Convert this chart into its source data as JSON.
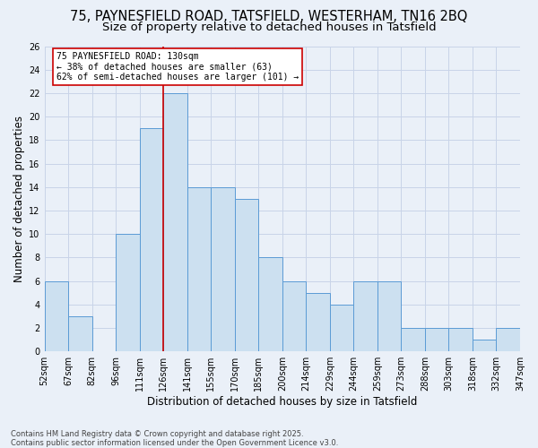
{
  "title1": "75, PAYNESFIELD ROAD, TATSFIELD, WESTERHAM, TN16 2BQ",
  "title2": "Size of property relative to detached houses in Tatsfield",
  "xlabel": "Distribution of detached houses by size in Tatsfield",
  "ylabel": "Number of detached properties",
  "bin_edges": [
    "52sqm",
    "67sqm",
    "82sqm",
    "96sqm",
    "111sqm",
    "126sqm",
    "141sqm",
    "155sqm",
    "170sqm",
    "185sqm",
    "200sqm",
    "214sqm",
    "229sqm",
    "244sqm",
    "259sqm",
    "273sqm",
    "288sqm",
    "303sqm",
    "318sqm",
    "332sqm",
    "347sqm"
  ],
  "values": [
    6,
    3,
    0,
    10,
    19,
    22,
    14,
    14,
    13,
    8,
    6,
    5,
    4,
    6,
    6,
    2,
    2,
    2,
    1,
    2
  ],
  "bar_color": "#cce0f0",
  "bar_edge_color": "#5b9bd5",
  "grid_color": "#c8d4e8",
  "background_color": "#eaf0f8",
  "annotation_text": "75 PAYNESFIELD ROAD: 130sqm\n← 38% of detached houses are smaller (63)\n62% of semi-detached houses are larger (101) →",
  "annotation_box_color": "white",
  "annotation_box_edge": "#cc0000",
  "vline_color": "#cc0000",
  "vline_x_index": 5,
  "ylim": [
    0,
    26
  ],
  "yticks": [
    0,
    2,
    4,
    6,
    8,
    10,
    12,
    14,
    16,
    18,
    20,
    22,
    24,
    26
  ],
  "footnote": "Contains HM Land Registry data © Crown copyright and database right 2025.\nContains public sector information licensed under the Open Government Licence v3.0.",
  "title_fontsize": 10.5,
  "subtitle_fontsize": 9.5,
  "axis_label_fontsize": 8.5,
  "tick_fontsize": 7,
  "footnote_fontsize": 6
}
